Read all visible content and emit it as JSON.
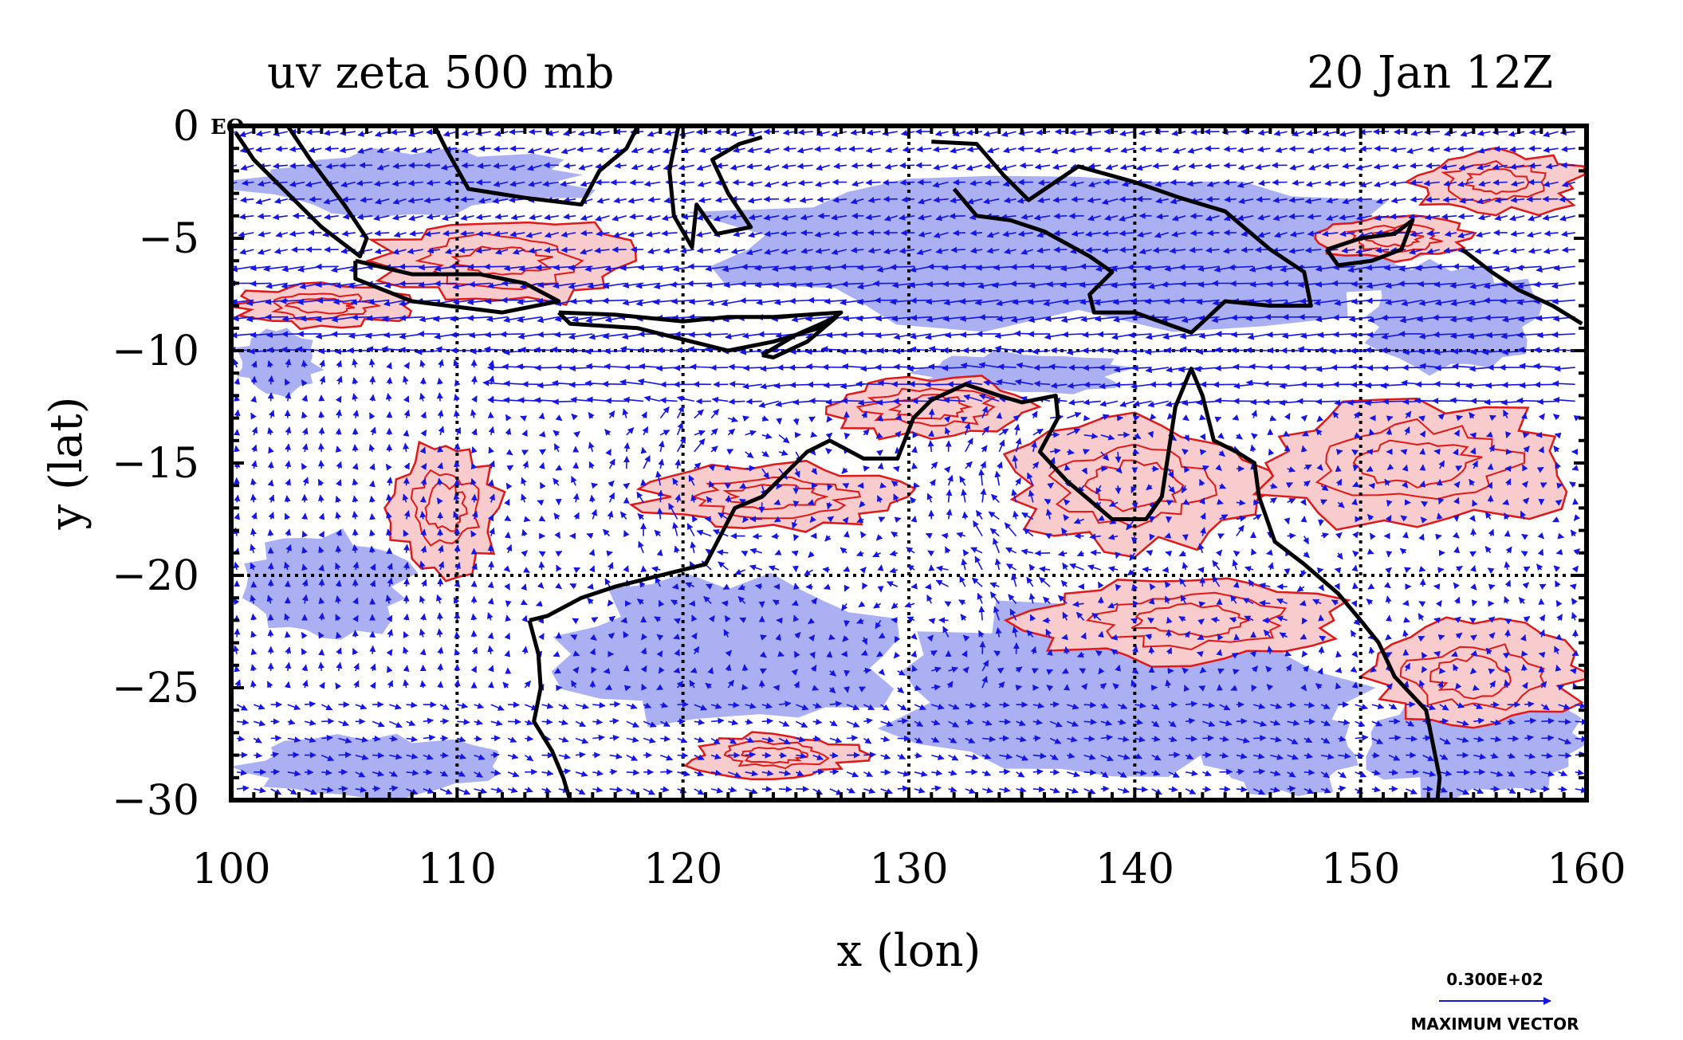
{
  "chart_data": {
    "type": "vector-field-map",
    "title_left": "uv zeta 500 mb",
    "title_right": "20 Jan 12Z",
    "xlabel": "x (lon)",
    "ylabel": "y (lat)",
    "xlim": [
      100,
      160
    ],
    "ylim": [
      -30,
      0
    ],
    "x_ticks": [
      "100",
      "110",
      "120",
      "130",
      "140",
      "150",
      "160"
    ],
    "y_ticks": [
      "0",
      "−5",
      "−10",
      "−15",
      "−20",
      "−25",
      "−30"
    ],
    "corner_label": "EQ",
    "grid_lon": [
      110,
      120,
      130,
      140,
      150
    ],
    "grid_lat": [
      -10,
      -20
    ],
    "reference_vector": {
      "value": "0.300E+02",
      "label": "MAXIMUM VECTOR"
    },
    "colors": {
      "vectors": "#1515e6",
      "negative_vorticity_fill": "#aab0f2",
      "positive_vorticity_fill": "#f8cccc",
      "positive_vorticity_contour": "#e01818",
      "coastline": "#000000"
    },
    "positive_vorticity_regions": [
      {
        "lon": [
          100,
          108
        ],
        "lat": [
          -9,
          -7
        ]
      },
      {
        "lon": [
          106,
          118
        ],
        "lat": [
          -8,
          -4
        ]
      },
      {
        "lon": [
          107,
          112
        ],
        "lat": [
          -20,
          -14
        ]
      },
      {
        "lon": [
          118,
          130
        ],
        "lat": [
          -18,
          -15
        ]
      },
      {
        "lon": [
          126,
          136
        ],
        "lat": [
          -14,
          -11
        ]
      },
      {
        "lon": [
          134,
          146
        ],
        "lat": [
          -19,
          -13
        ]
      },
      {
        "lon": [
          145,
          160
        ],
        "lat": [
          -18,
          -12
        ]
      },
      {
        "lon": [
          135,
          150
        ],
        "lat": [
          -24,
          -20
        ]
      },
      {
        "lon": [
          150,
          160
        ],
        "lat": [
          -27,
          -22
        ]
      },
      {
        "lon": [
          120,
          128
        ],
        "lat": [
          -29,
          -27
        ]
      },
      {
        "lon": [
          148,
          155
        ],
        "lat": [
          -6,
          -4
        ]
      },
      {
        "lon": [
          152,
          160
        ],
        "lat": [
          -4,
          -1
        ]
      }
    ],
    "negative_vorticity_regions": [
      {
        "lon": [
          100,
          116
        ],
        "lat": [
          -4,
          -1
        ]
      },
      {
        "lon": [
          120,
          155
        ],
        "lat": [
          -9,
          -2
        ]
      },
      {
        "lon": [
          100,
          108
        ],
        "lat": [
          -23,
          -18
        ]
      },
      {
        "lon": [
          100,
          112
        ],
        "lat": [
          -30,
          -27
        ]
      },
      {
        "lon": [
          114,
          130
        ],
        "lat": [
          -27,
          -20
        ]
      },
      {
        "lon": [
          128,
          150
        ],
        "lat": [
          -29,
          -21
        ]
      },
      {
        "lon": [
          150,
          160
        ],
        "lat": [
          -30,
          -25
        ]
      },
      {
        "lon": [
          150,
          158
        ],
        "lat": [
          -11,
          -6
        ]
      },
      {
        "lon": [
          130,
          140
        ],
        "lat": [
          -12,
          -10
        ]
      },
      {
        "lon": [
          100,
          104
        ],
        "lat": [
          -12,
          -9
        ]
      },
      {
        "lon": [
          143,
          150
        ],
        "lat": [
          -30,
          -26
        ]
      }
    ],
    "coastlines": [
      {
        "name": "Sumatra",
        "points": [
          [
            100.2,
            -0.3
          ],
          [
            101,
            -1.5
          ],
          [
            102.5,
            -3
          ],
          [
            104,
            -4.5
          ],
          [
            105.7,
            -5.8
          ],
          [
            106,
            -5
          ],
          [
            105,
            -3.5
          ],
          [
            103.5,
            -1.5
          ],
          [
            102.5,
            0
          ]
        ]
      },
      {
        "name": "Java",
        "points": [
          [
            105.5,
            -6
          ],
          [
            108,
            -6.6
          ],
          [
            111,
            -6.6
          ],
          [
            113,
            -7
          ],
          [
            114.5,
            -7.8
          ],
          [
            112,
            -8.3
          ],
          [
            108,
            -7.8
          ],
          [
            105.5,
            -6.8
          ],
          [
            105.5,
            -6
          ]
        ]
      },
      {
        "name": "Lesser Sunda",
        "points": [
          [
            114.5,
            -8.3
          ],
          [
            117,
            -8.4
          ],
          [
            120,
            -8.7
          ],
          [
            122,
            -8.5
          ],
          [
            124,
            -8.5
          ],
          [
            127,
            -8.3
          ],
          [
            126,
            -9
          ],
          [
            124,
            -9.6
          ],
          [
            122,
            -10
          ],
          [
            120,
            -9.5
          ],
          [
            118,
            -9
          ],
          [
            115,
            -8.8
          ],
          [
            114.5,
            -8.3
          ]
        ]
      },
      {
        "name": "Borneo",
        "points": [
          [
            109,
            0
          ],
          [
            109.5,
            -1
          ],
          [
            110.5,
            -2.8
          ],
          [
            113,
            -3.2
          ],
          [
            115.5,
            -3.5
          ],
          [
            116.3,
            -2
          ],
          [
            117.5,
            -1
          ],
          [
            118,
            0
          ]
        ]
      },
      {
        "name": "Sulawesi",
        "points": [
          [
            119.8,
            0
          ],
          [
            119.4,
            -2
          ],
          [
            119.6,
            -4
          ],
          [
            120.4,
            -5.4
          ],
          [
            120.6,
            -3.5
          ],
          [
            121.5,
            -4.8
          ],
          [
            123,
            -4.5
          ],
          [
            122,
            -3
          ],
          [
            121.3,
            -1.5
          ],
          [
            122.5,
            -0.8
          ],
          [
            123.5,
            -0.5
          ]
        ]
      },
      {
        "name": "New Guinea",
        "points": [
          [
            131,
            -0.7
          ],
          [
            133,
            -0.8
          ],
          [
            134.2,
            -2.2
          ],
          [
            135.3,
            -3.3
          ],
          [
            137.5,
            -1.8
          ],
          [
            140,
            -2.5
          ],
          [
            142,
            -3.2
          ],
          [
            144,
            -3.8
          ],
          [
            146,
            -5.5
          ],
          [
            147.5,
            -6.5
          ],
          [
            147.8,
            -8
          ],
          [
            146,
            -8
          ],
          [
            144,
            -7.8
          ],
          [
            142.5,
            -9.2
          ],
          [
            140,
            -8.3
          ],
          [
            138.2,
            -8.3
          ],
          [
            138,
            -7.5
          ],
          [
            139,
            -6.5
          ],
          [
            138,
            -5.8
          ],
          [
            136,
            -4.7
          ],
          [
            134.5,
            -4.2
          ],
          [
            133,
            -4
          ],
          [
            132,
            -2.8
          ]
        ]
      },
      {
        "name": "Timor",
        "points": [
          [
            123.5,
            -10.2
          ],
          [
            125,
            -9.3
          ],
          [
            126.8,
            -8.5
          ],
          [
            125.5,
            -9.6
          ],
          [
            124,
            -10.3
          ],
          [
            123.5,
            -10.2
          ]
        ]
      },
      {
        "name": "New Britain",
        "points": [
          [
            148.5,
            -5.5
          ],
          [
            150,
            -5
          ],
          [
            151.5,
            -4.8
          ],
          [
            152.3,
            -4.2
          ],
          [
            151.8,
            -5.5
          ],
          [
            150.5,
            -6
          ],
          [
            149,
            -6.2
          ],
          [
            148.5,
            -5.5
          ]
        ]
      },
      {
        "name": "Solomons",
        "points": [
          [
            154.5,
            -5.5
          ],
          [
            155.8,
            -6.5
          ],
          [
            157,
            -7.3
          ],
          [
            158.5,
            -8
          ],
          [
            159.8,
            -8.8
          ]
        ]
      },
      {
        "name": "Australia",
        "points": [
          [
            113.2,
            -22
          ],
          [
            114,
            -21.8
          ],
          [
            115.5,
            -21
          ],
          [
            117,
            -20.5
          ],
          [
            119,
            -20
          ],
          [
            121,
            -19.5
          ],
          [
            122.3,
            -17
          ],
          [
            123.5,
            -16.5
          ],
          [
            124.5,
            -15.5
          ],
          [
            125.5,
            -14.5
          ],
          [
            126.5,
            -14
          ],
          [
            128,
            -14.8
          ],
          [
            129.5,
            -14.8
          ],
          [
            130.2,
            -13
          ],
          [
            131,
            -12.2
          ],
          [
            132.5,
            -11.5
          ],
          [
            134,
            -12
          ],
          [
            135,
            -12.3
          ],
          [
            136.5,
            -12
          ],
          [
            136.6,
            -13
          ],
          [
            135.8,
            -14.5
          ],
          [
            137,
            -15.8
          ],
          [
            139,
            -17.5
          ],
          [
            140.5,
            -17.5
          ],
          [
            141.2,
            -16.5
          ],
          [
            141.5,
            -14.5
          ],
          [
            141.8,
            -12.5
          ],
          [
            142.5,
            -10.8
          ],
          [
            143,
            -12
          ],
          [
            143.5,
            -14
          ],
          [
            144.5,
            -14.5
          ],
          [
            145.3,
            -15
          ],
          [
            145.5,
            -16.5
          ],
          [
            146.2,
            -18.5
          ],
          [
            147.5,
            -19.5
          ],
          [
            149,
            -20.8
          ],
          [
            150,
            -22
          ],
          [
            150.8,
            -23
          ],
          [
            151.5,
            -24.5
          ],
          [
            152.9,
            -26
          ],
          [
            153.2,
            -27.5
          ],
          [
            153.5,
            -29
          ],
          [
            153.4,
            -30
          ]
        ]
      },
      {
        "name": "West Australia",
        "points": [
          [
            113.2,
            -22
          ],
          [
            113.6,
            -23.5
          ],
          [
            113.7,
            -25
          ],
          [
            113.4,
            -26.5
          ],
          [
            114.2,
            -27.8
          ],
          [
            114.7,
            -29
          ],
          [
            115,
            -30
          ]
        ]
      }
    ],
    "vector_field_note": "Wind vectors roughly 0.5 deg spacing; easterlies north of 10S, cyclonic circulations near 122E 16S and 137E 16S."
  }
}
